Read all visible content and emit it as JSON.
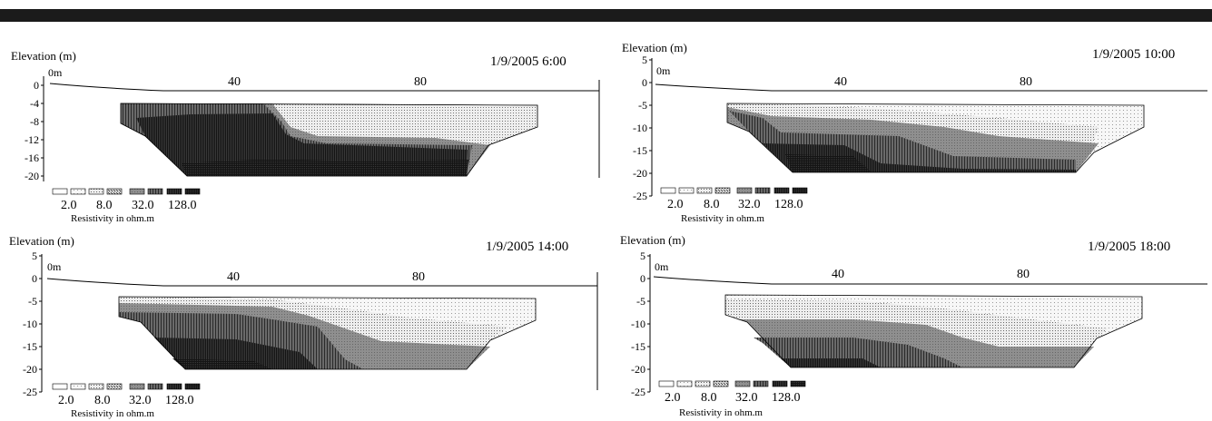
{
  "header": {
    "bar_color": "#1b1b1b"
  },
  "panels": [
    {
      "id": "p1",
      "timestamp": "1/9/2005 6:00",
      "elevation_label": "Elevation (m)",
      "distance_origin_label": "0m",
      "distance_ticks": [
        "40",
        "80"
      ],
      "y_ticks": [
        "0",
        "-4",
        "-8",
        "-12",
        "-16",
        "-20"
      ],
      "legend_values": [
        "2.0",
        "8.0",
        "32.0",
        "128.0"
      ],
      "legend_title": "Resistivity in ohm.m"
    },
    {
      "id": "p2",
      "timestamp": "1/9/2005 10:00",
      "elevation_label": "Elevation (m)",
      "distance_origin_label": "0m",
      "distance_ticks": [
        "40",
        "80"
      ],
      "y_ticks": [
        "5",
        "0",
        "-5",
        "-10",
        "-15",
        "-20",
        "-25"
      ],
      "legend_values": [
        "2.0",
        "8.0",
        "32.0",
        "128.0"
      ],
      "legend_title": "Resistivity in ohm.m"
    },
    {
      "id": "p3",
      "timestamp": "1/9/2005 14:00",
      "elevation_label": "Elevation (m)",
      "distance_origin_label": "0m",
      "distance_ticks": [
        "40",
        "80"
      ],
      "y_ticks": [
        "5",
        "0",
        "-5",
        "-10",
        "-15",
        "-20",
        "-25"
      ],
      "legend_values": [
        "2.0",
        "8.0",
        "32.0",
        "128.0"
      ],
      "legend_title": "Resistivity in ohm.m"
    },
    {
      "id": "p4",
      "timestamp": "1/9/2005 18:00",
      "elevation_label": "Elevation (m)",
      "distance_origin_label": "0m",
      "distance_ticks": [
        "40",
        "80"
      ],
      "y_ticks": [
        "5",
        "0",
        "-5",
        "-10",
        "-15",
        "-20",
        "-25"
      ],
      "legend_values": [
        "2.0",
        "8.0",
        "32.0",
        "128.0"
      ],
      "legend_title": "Resistivity in ohm.m"
    }
  ],
  "resistivity_scale": {
    "classes": 8,
    "fill_colors": [
      "#ffffff",
      "#f0f0f0",
      "#dcdcdc",
      "#c4c4c4",
      "#8e8e8e",
      "#5e5e5e",
      "#333333",
      "#121212"
    ]
  }
}
